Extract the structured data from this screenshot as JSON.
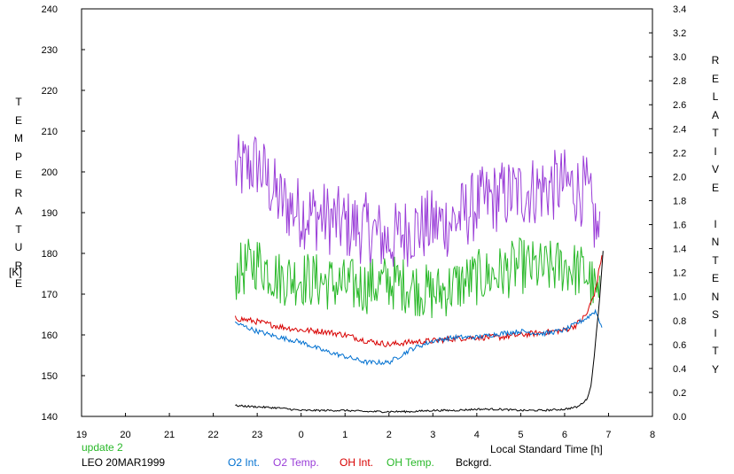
{
  "chart_data": {
    "type": "line",
    "ylabel_left": "TEMPERATURE",
    "ylabel_left_unit": "[K]",
    "ylabel_right": "RELATIVE INTENSITY",
    "xlabel": "Local Standard Time [h]",
    "xlim": [
      19,
      32
    ],
    "x_tick_labels": [
      "19",
      "20",
      "21",
      "22",
      "23",
      "0",
      "1",
      "2",
      "3",
      "4",
      "5",
      "6",
      "7",
      "8"
    ],
    "ylim_left": [
      140,
      240
    ],
    "ylim_right": [
      0,
      3.4
    ],
    "left_ticks": [
      140,
      150,
      160,
      170,
      180,
      190,
      200,
      210,
      220,
      230,
      240
    ],
    "right_ticks": [
      "0.0",
      "0.2",
      "0.4",
      "0.6",
      "0.8",
      "1.0",
      "1.2",
      "1.4",
      "1.6",
      "1.8",
      "2.0",
      "2.2",
      "2.4",
      "2.6",
      "2.8",
      "3.0",
      "3.2",
      "3.4"
    ],
    "grid": false,
    "note": "update 2",
    "station": "LEO 20MAR1999",
    "legend": [
      {
        "label": "O2 Int.",
        "color": "#0070d0"
      },
      {
        "label": "O2 Temp.",
        "color": "#9a3ed8"
      },
      {
        "label": "OH Int.",
        "color": "#d80000"
      },
      {
        "label": "OH Temp.",
        "color": "#28b828"
      },
      {
        "label": "Bckgrd.",
        "color": "#000000"
      }
    ],
    "series": [
      {
        "name": "O2 Temp.",
        "axis": "left",
        "color": "#9a3ed8",
        "x": [
          22.5,
          23,
          23.5,
          24,
          24.5,
          25,
          25.5,
          26,
          26.5,
          27,
          27.5,
          28,
          28.5,
          29,
          29.5,
          30,
          30.5,
          30.8
        ],
        "y": [
          200,
          202,
          193,
          190,
          189,
          187,
          186,
          183,
          186,
          187,
          188,
          192,
          194,
          195,
          196,
          197,
          195,
          183
        ]
      },
      {
        "name": "OH Temp.",
        "axis": "left",
        "color": "#28b828",
        "x": [
          22.5,
          23,
          23.5,
          24,
          24.5,
          25,
          25.5,
          26,
          26.5,
          27,
          27.5,
          28,
          28.5,
          29,
          29.5,
          30,
          30.5,
          30.8
        ],
        "y": [
          175,
          178,
          174,
          174,
          173,
          172,
          172,
          173,
          172,
          170,
          172,
          174,
          175,
          177,
          176,
          177,
          175,
          168
        ]
      },
      {
        "name": "OH Int.",
        "axis": "right",
        "color": "#d80000",
        "x": [
          22.5,
          23,
          23.5,
          24,
          24.5,
          25,
          25.5,
          26,
          26.5,
          27,
          27.5,
          28,
          28.5,
          29,
          29.5,
          30,
          30.25,
          30.5,
          30.7,
          30.85
        ],
        "y": [
          0.82,
          0.79,
          0.75,
          0.72,
          0.71,
          0.68,
          0.63,
          0.6,
          0.62,
          0.63,
          0.65,
          0.66,
          0.66,
          0.68,
          0.7,
          0.72,
          0.76,
          0.85,
          1.05,
          1.35
        ]
      },
      {
        "name": "O2 Int.",
        "axis": "right",
        "color": "#0070d0",
        "x": [
          22.5,
          23,
          23.5,
          24,
          24.5,
          25,
          25.5,
          26,
          26.5,
          27,
          27.5,
          28,
          28.5,
          29,
          29.5,
          30,
          30.5,
          30.7,
          30.85
        ],
        "y": [
          0.78,
          0.71,
          0.66,
          0.62,
          0.55,
          0.5,
          0.45,
          0.45,
          0.56,
          0.63,
          0.66,
          0.66,
          0.69,
          0.71,
          0.69,
          0.72,
          0.82,
          0.88,
          0.75
        ]
      },
      {
        "name": "Bckgrd.",
        "axis": "right",
        "color": "#000000",
        "x": [
          22.5,
          23,
          23.5,
          24,
          24.5,
          25,
          25.5,
          26,
          26.5,
          27,
          27.5,
          28,
          28.5,
          29,
          29.5,
          30,
          30.3,
          30.5,
          30.6,
          30.7,
          30.8,
          30.88
        ],
        "y": [
          0.09,
          0.08,
          0.07,
          0.05,
          0.05,
          0.05,
          0.04,
          0.04,
          0.04,
          0.05,
          0.05,
          0.06,
          0.06,
          0.05,
          0.05,
          0.06,
          0.08,
          0.14,
          0.25,
          0.6,
          1.0,
          1.4
        ]
      }
    ]
  }
}
